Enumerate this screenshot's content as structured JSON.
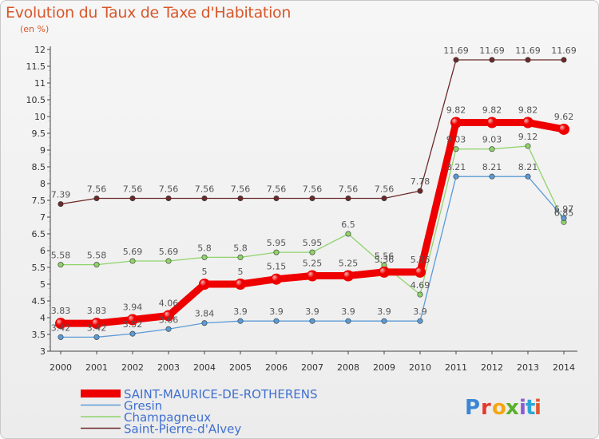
{
  "title": "Evolution du Taux de Taxe d'Habitation",
  "subtitle": "(en %)",
  "brand": "Proxiti",
  "colors": {
    "legend_text": "#3f6fd0",
    "title": "#d8572a",
    "axis": "#444444"
  },
  "chart_data": {
    "type": "line",
    "x": [
      "2000",
      "2001",
      "2002",
      "2003",
      "2004",
      "2005",
      "2006",
      "2007",
      "2008",
      "2009",
      "2010",
      "2011",
      "2012",
      "2013",
      "2014"
    ],
    "ylim": [
      3,
      12
    ],
    "yticks": [
      "3",
      "3.5",
      "4",
      "4.5",
      "5",
      "5.5",
      "6",
      "6.5",
      "7",
      "7.5",
      "8",
      "8.5",
      "9",
      "9.5",
      "10",
      "10.5",
      "11",
      "11.5",
      "12"
    ],
    "grid": false,
    "legend_position": "bottom-left",
    "series": [
      {
        "name": "Saint-Pierre-d'Alvey",
        "color": "#6b2a2a",
        "values": [
          7.39,
          7.56,
          7.56,
          7.56,
          7.56,
          7.56,
          7.56,
          7.56,
          7.56,
          7.56,
          7.78,
          11.69,
          11.69,
          11.69,
          11.69
        ],
        "labels": [
          "7.39",
          "7.56",
          "7.56",
          "7.56",
          "7.56",
          "7.56",
          "7.56",
          "7.56",
          "7.56",
          "7.56",
          "7.78",
          "11.69",
          "11.69",
          "11.69",
          "11.69"
        ]
      },
      {
        "name": "Champagneux",
        "color": "#8fd36b",
        "values": [
          5.58,
          5.58,
          5.69,
          5.69,
          5.8,
          5.8,
          5.95,
          5.95,
          6.5,
          5.56,
          4.69,
          9.03,
          9.03,
          9.12,
          6.85
        ],
        "labels": [
          "5.58",
          "5.58",
          "5.69",
          "5.69",
          "5.8",
          "5.8",
          "5.95",
          "5.95",
          "6.5",
          "5.56",
          "4.69",
          "9.03",
          "9.03",
          "9.12",
          "6.85"
        ]
      },
      {
        "name": "Gresin",
        "color": "#5b9bd5",
        "values": [
          3.42,
          3.42,
          3.52,
          3.66,
          3.84,
          3.9,
          3.9,
          3.9,
          3.9,
          3.9,
          3.9,
          8.21,
          8.21,
          8.21,
          6.97
        ],
        "labels": [
          "3.42",
          "3.42",
          "3.52",
          "3.66",
          "3.84",
          "3.9",
          "3.9",
          "3.9",
          "3.9",
          "3.9",
          "3.9",
          "8.21",
          "8.21",
          "8.21",
          "6.97"
        ]
      },
      {
        "name": "SAINT-MAURICE-DE-ROTHERENS",
        "color": "#ee0000",
        "values": [
          3.83,
          3.83,
          3.94,
          4.06,
          5,
          5,
          5.15,
          5.25,
          5.25,
          5.36,
          5.36,
          9.82,
          9.82,
          9.82,
          9.62
        ],
        "labels": [
          "3.83",
          "3.83",
          "3.94",
          "4.06",
          "5",
          "5",
          "5.15",
          "5.25",
          "5.25",
          "5.36",
          "5.36",
          "9.82",
          "9.82",
          "9.82",
          "9.62"
        ]
      }
    ],
    "legend_order": [
      "SAINT-MAURICE-DE-ROTHERENS",
      "Gresin",
      "Champagneux",
      "Saint-Pierre-d'Alvey"
    ]
  }
}
